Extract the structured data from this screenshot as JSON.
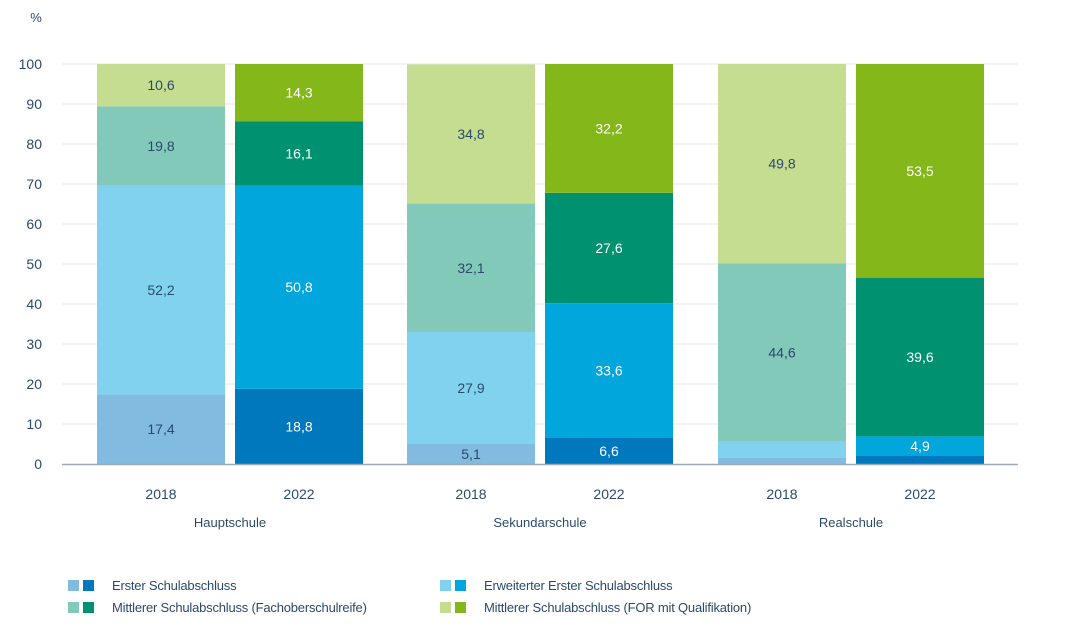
{
  "chart_data": {
    "type": "bar",
    "stacked": true,
    "title": "",
    "ylabel": "%",
    "xlabel": "",
    "ylim": [
      0,
      100
    ],
    "yticks": [
      0,
      10,
      20,
      30,
      40,
      50,
      60,
      70,
      80,
      90,
      100
    ],
    "grid": true,
    "groups": [
      {
        "name": "Hauptschule",
        "bars": [
          {
            "year": "2018",
            "values": [
              17.4,
              52.2,
              19.8,
              10.6
            ],
            "labels": [
              "17,4",
              "52,2",
              "19,8",
              "10,6"
            ]
          },
          {
            "year": "2022",
            "values": [
              18.8,
              50.8,
              16.1,
              14.3
            ],
            "labels": [
              "18,8",
              "50,8",
              "16,1",
              "14,3"
            ]
          }
        ]
      },
      {
        "name": "Sekundarschule",
        "bars": [
          {
            "year": "2018",
            "values": [
              5.1,
              27.9,
              32.1,
              34.8
            ],
            "labels": [
              "5,1",
              "27,9",
              "32,1",
              "34,8"
            ]
          },
          {
            "year": "2022",
            "values": [
              6.6,
              33.6,
              27.6,
              32.2
            ],
            "labels": [
              "6,6",
              "33,6",
              "27,6",
              "32,2"
            ]
          }
        ]
      },
      {
        "name": "Realschule",
        "bars": [
          {
            "year": "2018",
            "values": [
              1.5,
              4.1,
              44.6,
              49.8
            ],
            "labels": [
              "",
              "",
              "44,6",
              "49,8"
            ]
          },
          {
            "year": "2022",
            "values": [
              2.0,
              4.9,
              39.6,
              53.5
            ],
            "labels": [
              "",
              "4,9",
              "39,6",
              "53,5"
            ]
          }
        ]
      }
    ],
    "series": [
      {
        "name": "Erster Schulabschluss",
        "color_2018": "#82BBE0",
        "color_2022": "#0078BE"
      },
      {
        "name": "Erweiterter Erster Schulabschluss",
        "color_2018": "#80D2EE",
        "color_2022": "#00A6DC"
      },
      {
        "name": "Mittlerer Schulabschluss (Fachoberschulreife)",
        "color_2018": "#82C9BA",
        "color_2022": "#009270"
      },
      {
        "name": "Mittlerer Schulabschluss (FOR mit Qualifikation)",
        "color_2018": "#C5DD90",
        "color_2022": "#84B81A"
      }
    ],
    "legend_position": "bottom"
  }
}
